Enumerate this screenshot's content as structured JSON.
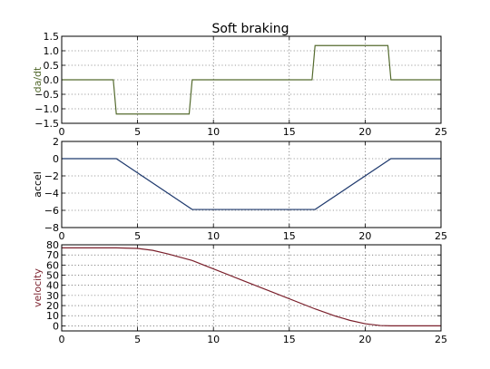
{
  "title": "Soft braking",
  "chart_data": [
    {
      "type": "line",
      "ylabel": "da/dt",
      "ylabel_color": "#556b2f",
      "line_color": "#556b2f",
      "xlim": [
        0,
        25
      ],
      "ylim": [
        -1.5,
        1.5
      ],
      "xticks": [
        "0",
        "5",
        "10",
        "15",
        "20",
        "25"
      ],
      "yticks": [
        "1.5",
        "1.0",
        "0.5",
        "0.0",
        "−0.5",
        "−1.0",
        "−1.5"
      ],
      "ytick_values": [
        1.5,
        1.0,
        0.5,
        0.0,
        -0.5,
        -1.0,
        -1.5
      ],
      "xtick_values": [
        0,
        5,
        10,
        15,
        20,
        25
      ],
      "grid": true,
      "series": [
        {
          "x": [
            0,
            3.4,
            3.6,
            8.4,
            8.6,
            16.5,
            16.7,
            21.5,
            21.7,
            25
          ],
          "y": [
            0,
            0,
            -1.18,
            -1.18,
            0,
            0,
            1.18,
            1.18,
            0,
            0
          ]
        }
      ]
    },
    {
      "type": "line",
      "ylabel": "accel",
      "ylabel_color": "#000000",
      "line_color": "#1f3a6e",
      "xlim": [
        0,
        25
      ],
      "ylim": [
        -8,
        2
      ],
      "xticks": [
        "0",
        "5",
        "10",
        "15",
        "20",
        "25"
      ],
      "yticks": [
        "2",
        "0",
        "−2",
        "−4",
        "−6",
        "−8"
      ],
      "ytick_values": [
        2,
        0,
        -2,
        -4,
        -6,
        -8
      ],
      "xtick_values": [
        0,
        5,
        10,
        15,
        20,
        25
      ],
      "grid": true,
      "series": [
        {
          "x": [
            0,
            3.6,
            8.6,
            16.7,
            21.7,
            25
          ],
          "y": [
            0,
            0,
            -5.9,
            -5.9,
            0,
            0
          ]
        }
      ]
    },
    {
      "type": "line",
      "ylabel": "velocity",
      "ylabel_color": "#7a1f2b",
      "line_color": "#7a1f2b",
      "xlim": [
        0,
        25
      ],
      "ylim": [
        -5,
        80
      ],
      "xticks": [
        "0",
        "5",
        "10",
        "15",
        "20",
        "25"
      ],
      "yticks": [
        "80",
        "70",
        "60",
        "50",
        "40",
        "30",
        "20",
        "10",
        "0"
      ],
      "ytick_values": [
        80,
        70,
        60,
        50,
        40,
        30,
        20,
        10,
        0
      ],
      "xtick_values": [
        0,
        5,
        10,
        15,
        20,
        25
      ],
      "grid": true,
      "series": [
        {
          "x": [
            0,
            3.6,
            5,
            6,
            7,
            8.6,
            10,
            12,
            14,
            16.7,
            18,
            19,
            20,
            21,
            21.7,
            25
          ],
          "y": [
            77,
            77,
            76.4,
            74.5,
            71,
            64.5,
            56.2,
            44.4,
            32.6,
            16.7,
            9.8,
            5.4,
            2.1,
            0.3,
            0,
            0
          ]
        }
      ]
    }
  ]
}
